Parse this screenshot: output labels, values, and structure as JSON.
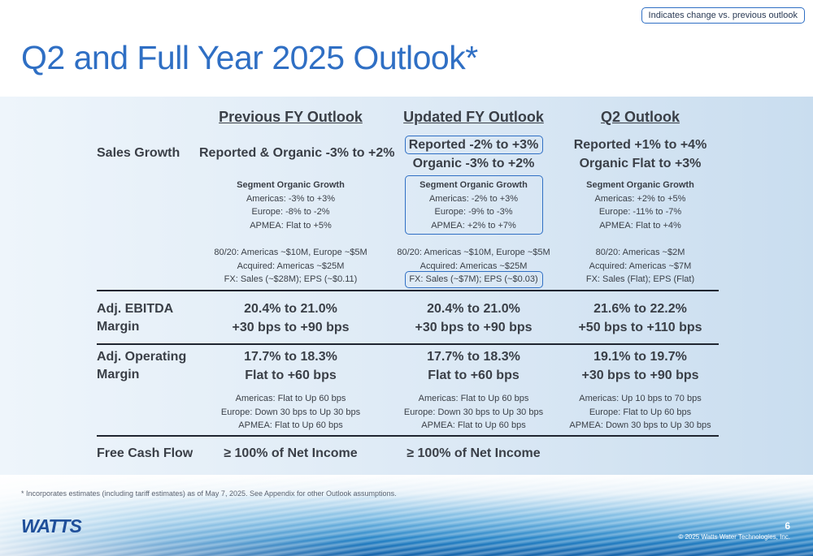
{
  "legend": "Indicates change vs. previous outlook",
  "title": "Q2 and Full Year 2025 Outlook*",
  "headers": [
    "Previous FY Outlook",
    "Updated FY Outlook",
    "Q2 Outlook"
  ],
  "rows": {
    "sales": {
      "label": "Sales Growth",
      "prev": "Reported & Organic -3% to +2%",
      "upd": [
        "Reported -2% to +3%",
        "Organic -3% to +2%"
      ],
      "q2": [
        "Reported +1% to +4%",
        "Organic Flat to +3%"
      ]
    },
    "segment": {
      "prev": [
        "Segment Organic Growth",
        "Americas: -3% to +3%",
        "Europe: -8% to -2%",
        "APMEA: Flat to +5%"
      ],
      "upd": [
        "Segment Organic Growth",
        "Americas: -2% to +3%",
        "Europe: -9% to -3%",
        "APMEA: +2% to +7%"
      ],
      "q2": [
        "Segment Organic Growth",
        "Americas: +2% to +5%",
        "Europe: -11% to -7%",
        "APMEA: Flat to +4%"
      ]
    },
    "other": {
      "prev": [
        "80/20: Americas ~$10M, Europe ~$5M",
        "Acquired: Americas ~$25M",
        "FX: Sales (~$28M); EPS (~$0.11)"
      ],
      "upd": [
        "80/20: Americas ~$10M, Europe ~$5M",
        "Acquired: Americas ~$25M",
        "FX: Sales (~$7M); EPS (~$0.03)"
      ],
      "q2": [
        "80/20: Americas ~$2M",
        "Acquired: Americas ~$7M",
        "FX: Sales (Flat); EPS (Flat)"
      ]
    },
    "ebitda": {
      "label": [
        "Adj. EBITDA",
        "Margin"
      ],
      "prev": [
        "20.4% to 21.0%",
        "+30 bps to +90 bps"
      ],
      "upd": [
        "20.4% to 21.0%",
        "+30 bps to +90 bps"
      ],
      "q2": [
        "21.6% to 22.2%",
        "+50 bps to +110 bps"
      ]
    },
    "operating": {
      "label": [
        "Adj. Operating",
        "Margin"
      ],
      "prev": [
        "17.7% to 18.3%",
        "Flat to +60 bps"
      ],
      "upd": [
        "17.7% to 18.3%",
        "Flat to +60 bps"
      ],
      "q2": [
        "19.1% to 19.7%",
        "+30 bps to +90 bps"
      ]
    },
    "opdetail": {
      "prev": [
        "Americas: Flat to Up 60 bps",
        "Europe: Down 30 bps to Up 30 bps",
        "APMEA: Flat to Up 60 bps"
      ],
      "upd": [
        "Americas: Flat to Up 60 bps",
        "Europe: Down 30 bps to Up 30 bps",
        "APMEA: Flat to Up 60 bps"
      ],
      "q2": [
        "Americas: Up 10 bps to 70 bps",
        "Europe: Flat to Up 60 bps",
        "APMEA: Down 30 bps to Up 30 bps"
      ]
    },
    "fcf": {
      "label": "Free Cash Flow",
      "prev": "≥ 100% of Net Income",
      "upd": "≥ 100% of Net Income"
    }
  },
  "footnote": "* Incorporates estimates (including tariff estimates) as of May 7, 2025. See Appendix for other Outlook assumptions.",
  "logo_text": "WATTS",
  "page_number": "6",
  "copyright": "© 2025 Watts Water Technologies, Inc.",
  "colors": {
    "accent": "#2f6fc4",
    "text": "#3a3f47",
    "highlight_border": "#2f6fc4"
  }
}
